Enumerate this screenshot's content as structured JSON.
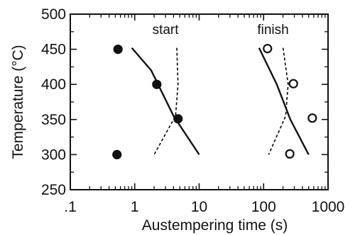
{
  "chart_data": {
    "type": "scatter",
    "title": "",
    "xlabel": "Austempering time (s)",
    "ylabel": "Temperature (°C)",
    "xscale": "log",
    "xlim": [
      0.1,
      1000
    ],
    "ylim": [
      250,
      500
    ],
    "x_ticks": [
      0.1,
      1,
      10,
      100,
      1000
    ],
    "x_tick_labels": [
      ".1",
      "1",
      "10",
      "100",
      "1000"
    ],
    "y_ticks": [
      250,
      300,
      350,
      400,
      450,
      500
    ],
    "y_tick_labels": [
      "250",
      "300",
      "350",
      "400",
      "450",
      "500"
    ],
    "grid": false,
    "legend": "none",
    "annotations": [
      {
        "text": "start",
        "x": 3,
        "y": 472
      },
      {
        "text": "finish",
        "x": 140,
        "y": 472
      }
    ],
    "series": [
      {
        "marker": "filled-circle",
        "color": "#111111",
        "points": [
          {
            "x": 0.55,
            "y": 450
          },
          {
            "x": 2.2,
            "y": 400
          },
          {
            "x": 4.7,
            "y": 351
          },
          {
            "x": 0.53,
            "y": 300
          }
        ]
      },
      {
        "marker": "open-circle",
        "color": "#111111",
        "points": [
          {
            "x": 115,
            "y": 451
          },
          {
            "x": 290,
            "y": 401
          },
          {
            "x": 570,
            "y": 352
          },
          {
            "x": 255,
            "y": 301
          }
        ]
      },
      {
        "line": "solid",
        "color": "#111111",
        "points": [
          {
            "x": 0.9,
            "y": 452
          },
          {
            "x": 1.8,
            "y": 420
          },
          {
            "x": 4,
            "y": 355
          },
          {
            "x": 10,
            "y": 300
          }
        ]
      },
      {
        "line": "dashed",
        "color": "#111111",
        "points": [
          {
            "x": 4.5,
            "y": 452
          },
          {
            "x": 4.7,
            "y": 400
          },
          {
            "x": 4.3,
            "y": 355
          },
          {
            "x": 2.0,
            "y": 300
          }
        ]
      },
      {
        "line": "solid",
        "color": "#111111",
        "points": [
          {
            "x": 85,
            "y": 452
          },
          {
            "x": 160,
            "y": 400
          },
          {
            "x": 260,
            "y": 350
          },
          {
            "x": 500,
            "y": 300
          }
        ]
      },
      {
        "line": "dashed",
        "color": "#111111",
        "points": [
          {
            "x": 200,
            "y": 452
          },
          {
            "x": 240,
            "y": 400
          },
          {
            "x": 220,
            "y": 355
          },
          {
            "x": 120,
            "y": 300
          }
        ]
      }
    ]
  }
}
